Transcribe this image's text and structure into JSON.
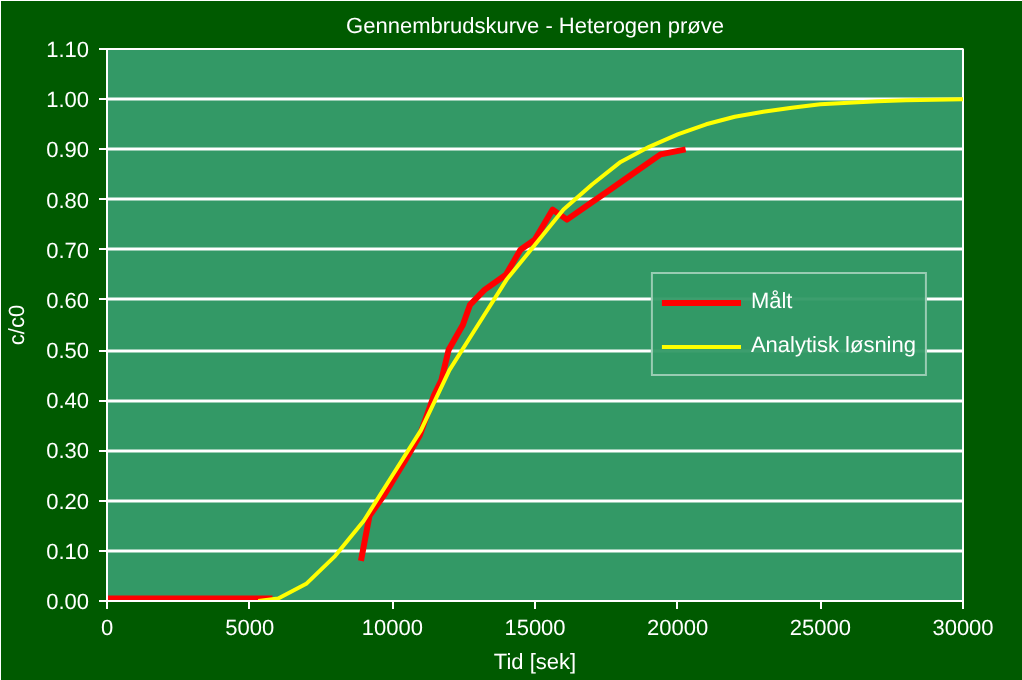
{
  "chart_data": {
    "type": "line",
    "title": "Gennembrudskurve - Heterogen prøve",
    "xlabel": "Tid [sek]",
    "ylabel": "c/c0",
    "xlim": [
      0,
      30000
    ],
    "xticks": [
      0,
      5000,
      10000,
      15000,
      20000,
      25000,
      30000
    ],
    "ylim": [
      0,
      1.1
    ],
    "yticks": [
      {
        "value": 0,
        "label": "0.00"
      },
      {
        "value": 0.1,
        "label": "0.10"
      },
      {
        "value": 0.2,
        "label": "0.20"
      },
      {
        "value": 0.3,
        "label": "0.30"
      },
      {
        "value": 0.4,
        "label": "0.40"
      },
      {
        "value": 0.5,
        "label": "0.50"
      },
      {
        "value": 0.6,
        "label": "0.60"
      },
      {
        "value": 0.7,
        "label": "0.70"
      },
      {
        "value": 0.8,
        "label": "0.80"
      },
      {
        "value": 0.9,
        "label": "0.90"
      },
      {
        "value": 1.0,
        "label": "1.00"
      },
      {
        "value": 1.1,
        "label": "1.10"
      }
    ],
    "grid": "y",
    "legend": "right",
    "marker": "none",
    "line_style": "solid",
    "series": [
      {
        "name": "Målt",
        "color": "#ff0000",
        "x": [
          0,
          5800,
          5900,
          8900,
          9200,
          9700,
          10450,
          10960,
          11460,
          11720,
          11970,
          12470,
          12720,
          13230,
          13980,
          14490,
          14990,
          15620,
          16120,
          16880,
          17640,
          18390,
          19400,
          20280
        ],
        "values": [
          0.005,
          0.005,
          null,
          0.08,
          0.17,
          0.21,
          0.28,
          0.33,
          0.41,
          0.44,
          0.5,
          0.55,
          0.59,
          0.62,
          0.65,
          0.7,
          0.72,
          0.78,
          0.76,
          0.79,
          0.82,
          0.85,
          0.89,
          0.9
        ]
      },
      {
        "name": "Analytisk løsning",
        "color": "#ffff00",
        "x": [
          5300,
          6000,
          7000,
          8000,
          9000,
          10000,
          11000,
          12000,
          13000,
          14000,
          15000,
          16000,
          17000,
          18000,
          19000,
          20000,
          21000,
          22000,
          23000,
          24000,
          25000,
          26000,
          27000,
          28000,
          30000
        ],
        "values": [
          0,
          0.005,
          0.035,
          0.09,
          0.16,
          0.25,
          0.34,
          0.46,
          0.55,
          0.64,
          0.71,
          0.78,
          0.83,
          0.875,
          0.905,
          0.93,
          0.95,
          0.965,
          0.975,
          0.983,
          0.99,
          0.993,
          0.996,
          0.998,
          1.0
        ]
      }
    ]
  }
}
